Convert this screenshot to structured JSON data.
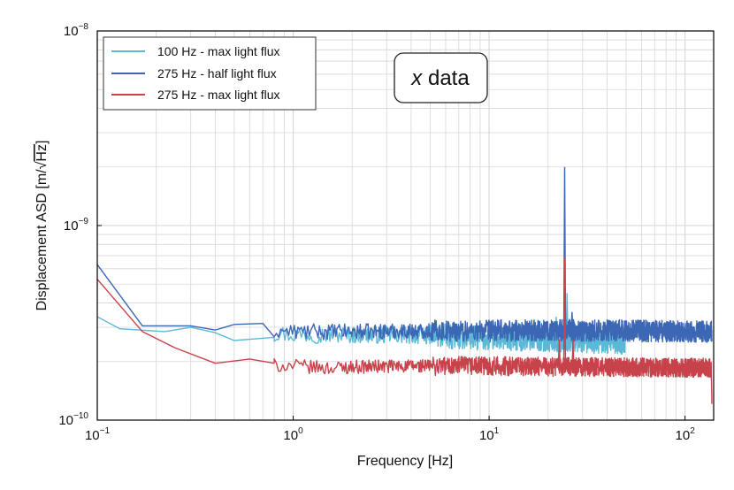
{
  "chart_data": {
    "type": "line",
    "title": "",
    "xlabel": "Frequency [Hz]",
    "ylabel_prefix": "Displacement ASD [m/",
    "ylabel_radical": "√",
    "ylabel_radicand": "Hz",
    "ylabel_suffix": "]",
    "xscale": "log",
    "yscale": "log",
    "xlim": [
      0.1,
      140
    ],
    "ylim": [
      1e-10,
      1e-08
    ],
    "grid": true,
    "legend_position": "top-left",
    "x_ticks": [
      {
        "value": 0.1,
        "base": "10",
        "exp": "−1"
      },
      {
        "value": 1,
        "base": "10",
        "exp": "0"
      },
      {
        "value": 10,
        "base": "10",
        "exp": "1"
      },
      {
        "value": 100,
        "base": "10",
        "exp": "2"
      }
    ],
    "y_ticks": [
      {
        "value": 1e-10,
        "base": "10",
        "exp": "−10"
      },
      {
        "value": 1e-09,
        "base": "10",
        "exp": "−9"
      },
      {
        "value": 1e-08,
        "base": "10",
        "exp": "−8"
      }
    ],
    "annotation": {
      "italic": "x",
      "rest": " data"
    },
    "series": [
      {
        "name": "100 Hz - max light flux",
        "color": "#5bb8d6",
        "x_max": 50,
        "points": [
          [
            0.1,
            3.4e-10
          ],
          [
            0.13,
            2.95e-10
          ],
          [
            0.17,
            2.9e-10
          ],
          [
            0.22,
            2.85e-10
          ],
          [
            0.3,
            3e-10
          ],
          [
            0.4,
            2.95e-10
          ],
          [
            0.5,
            2.8e-10
          ],
          [
            0.6,
            2.75e-10
          ],
          [
            0.8,
            2.8e-10
          ],
          [
            1,
            2.75e-10
          ],
          [
            2,
            2.75e-10
          ],
          [
            5,
            2.72e-10
          ],
          [
            10,
            2.62e-10
          ],
          [
            20,
            2.6e-10
          ],
          [
            30,
            2.55e-10
          ],
          [
            50,
            2.5e-10
          ]
        ],
        "spikes": [
          [
            17.0,
            3.3e-10
          ],
          [
            22.0,
            3.4e-10
          ],
          [
            25.0,
            4.5e-10
          ],
          [
            27.5,
            3.1e-10
          ],
          [
            30.0,
            2.9e-10
          ]
        ],
        "noise": 0.045
      },
      {
        "name": "275 Hz - half light flux",
        "color": "#3c67b5",
        "x_max": 137,
        "points": [
          [
            0.1,
            6.3e-10
          ],
          [
            0.17,
            3.05e-10
          ],
          [
            0.3,
            3.05e-10
          ],
          [
            0.4,
            3e-10
          ],
          [
            0.5,
            2.85e-10
          ],
          [
            0.7,
            2.9e-10
          ],
          [
            1,
            2.85e-10
          ],
          [
            2,
            2.85e-10
          ],
          [
            5,
            2.88e-10
          ],
          [
            10,
            2.88e-10
          ],
          [
            20,
            2.9e-10
          ],
          [
            50,
            2.88e-10
          ],
          [
            100,
            2.85e-10
          ],
          [
            137,
            2.85e-10
          ]
        ],
        "spikes": [
          [
            24.3,
            2e-09
          ],
          [
            26.5,
            3.6e-10
          ],
          [
            23.0,
            3.3e-10
          ]
        ],
        "noise": 0.04
      },
      {
        "name": "275 Hz - max light flux",
        "color": "#c8424b",
        "x_max": 137,
        "points": [
          [
            0.1,
            5.3e-10
          ],
          [
            0.17,
            2.85e-10
          ],
          [
            0.25,
            2.35e-10
          ],
          [
            0.4,
            2e-10
          ],
          [
            0.6,
            1.95e-10
          ],
          [
            0.8,
            1.92e-10
          ],
          [
            1,
            1.9e-10
          ],
          [
            1.5,
            1.85e-10
          ],
          [
            2,
            1.88e-10
          ],
          [
            5,
            1.9e-10
          ],
          [
            10,
            1.9e-10
          ],
          [
            20,
            1.88e-10
          ],
          [
            50,
            1.87e-10
          ],
          [
            100,
            1.86e-10
          ],
          [
            136,
            1.86e-10
          ],
          [
            137,
            1.35e-10
          ]
        ],
        "spikes": [
          [
            24.3,
            6.8e-10
          ],
          [
            22.8,
            2.6e-10
          ],
          [
            26.8,
            2.6e-10
          ]
        ],
        "noise": 0.035
      }
    ]
  }
}
